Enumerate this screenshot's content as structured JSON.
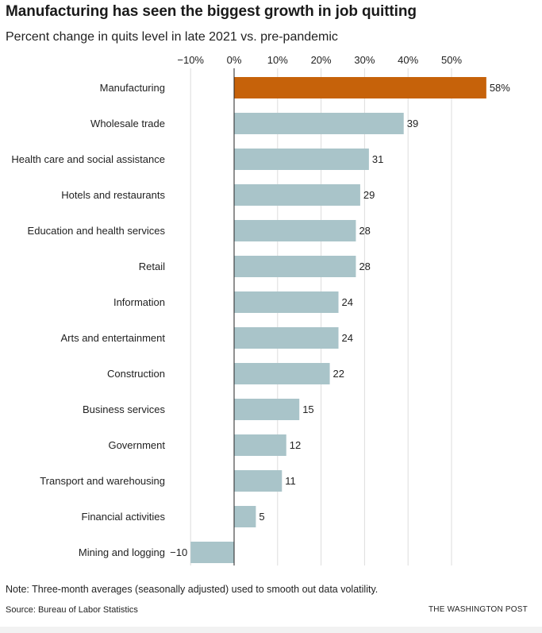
{
  "header": {
    "title": "Manufacturing has seen the biggest growth in job quitting",
    "subtitle": "Percent change in quits level in late 2021 vs. pre-pandemic"
  },
  "chart_data": {
    "type": "bar",
    "orientation": "horizontal",
    "categories": [
      "Manufacturing",
      "Wholesale trade",
      "Health care and social assistance",
      "Hotels and restaurants",
      "Education and health services",
      "Retail",
      "Information",
      "Arts and entertainment",
      "Construction",
      "Business services",
      "Government",
      "Transport and warehousing",
      "Financial activities",
      "Mining and logging"
    ],
    "values": [
      58,
      39,
      31,
      29,
      28,
      28,
      24,
      24,
      22,
      15,
      12,
      11,
      5,
      -10
    ],
    "value_labels": [
      "58%",
      "39",
      "31",
      "29",
      "28",
      "28",
      "24",
      "24",
      "22",
      "15",
      "12",
      "11",
      "5",
      "−10"
    ],
    "x_ticks": [
      -10,
      0,
      10,
      20,
      30,
      40,
      50
    ],
    "x_tick_labels": [
      "−10%",
      "0%",
      "10%",
      "20%",
      "30%",
      "40%",
      "50%"
    ],
    "xlim": [
      -10,
      58
    ],
    "grid": true,
    "colors": {
      "highlight": "#c6620a",
      "default": "#a9c4c9",
      "grid": "#dddddd",
      "zero_line": "#222222"
    }
  },
  "footer": {
    "note": "Note: Three-month averages (seasonally adjusted) used to smooth out data volatility.",
    "source": "Source: Bureau of Labor Statistics",
    "credit": "THE WASHINGTON POST"
  }
}
